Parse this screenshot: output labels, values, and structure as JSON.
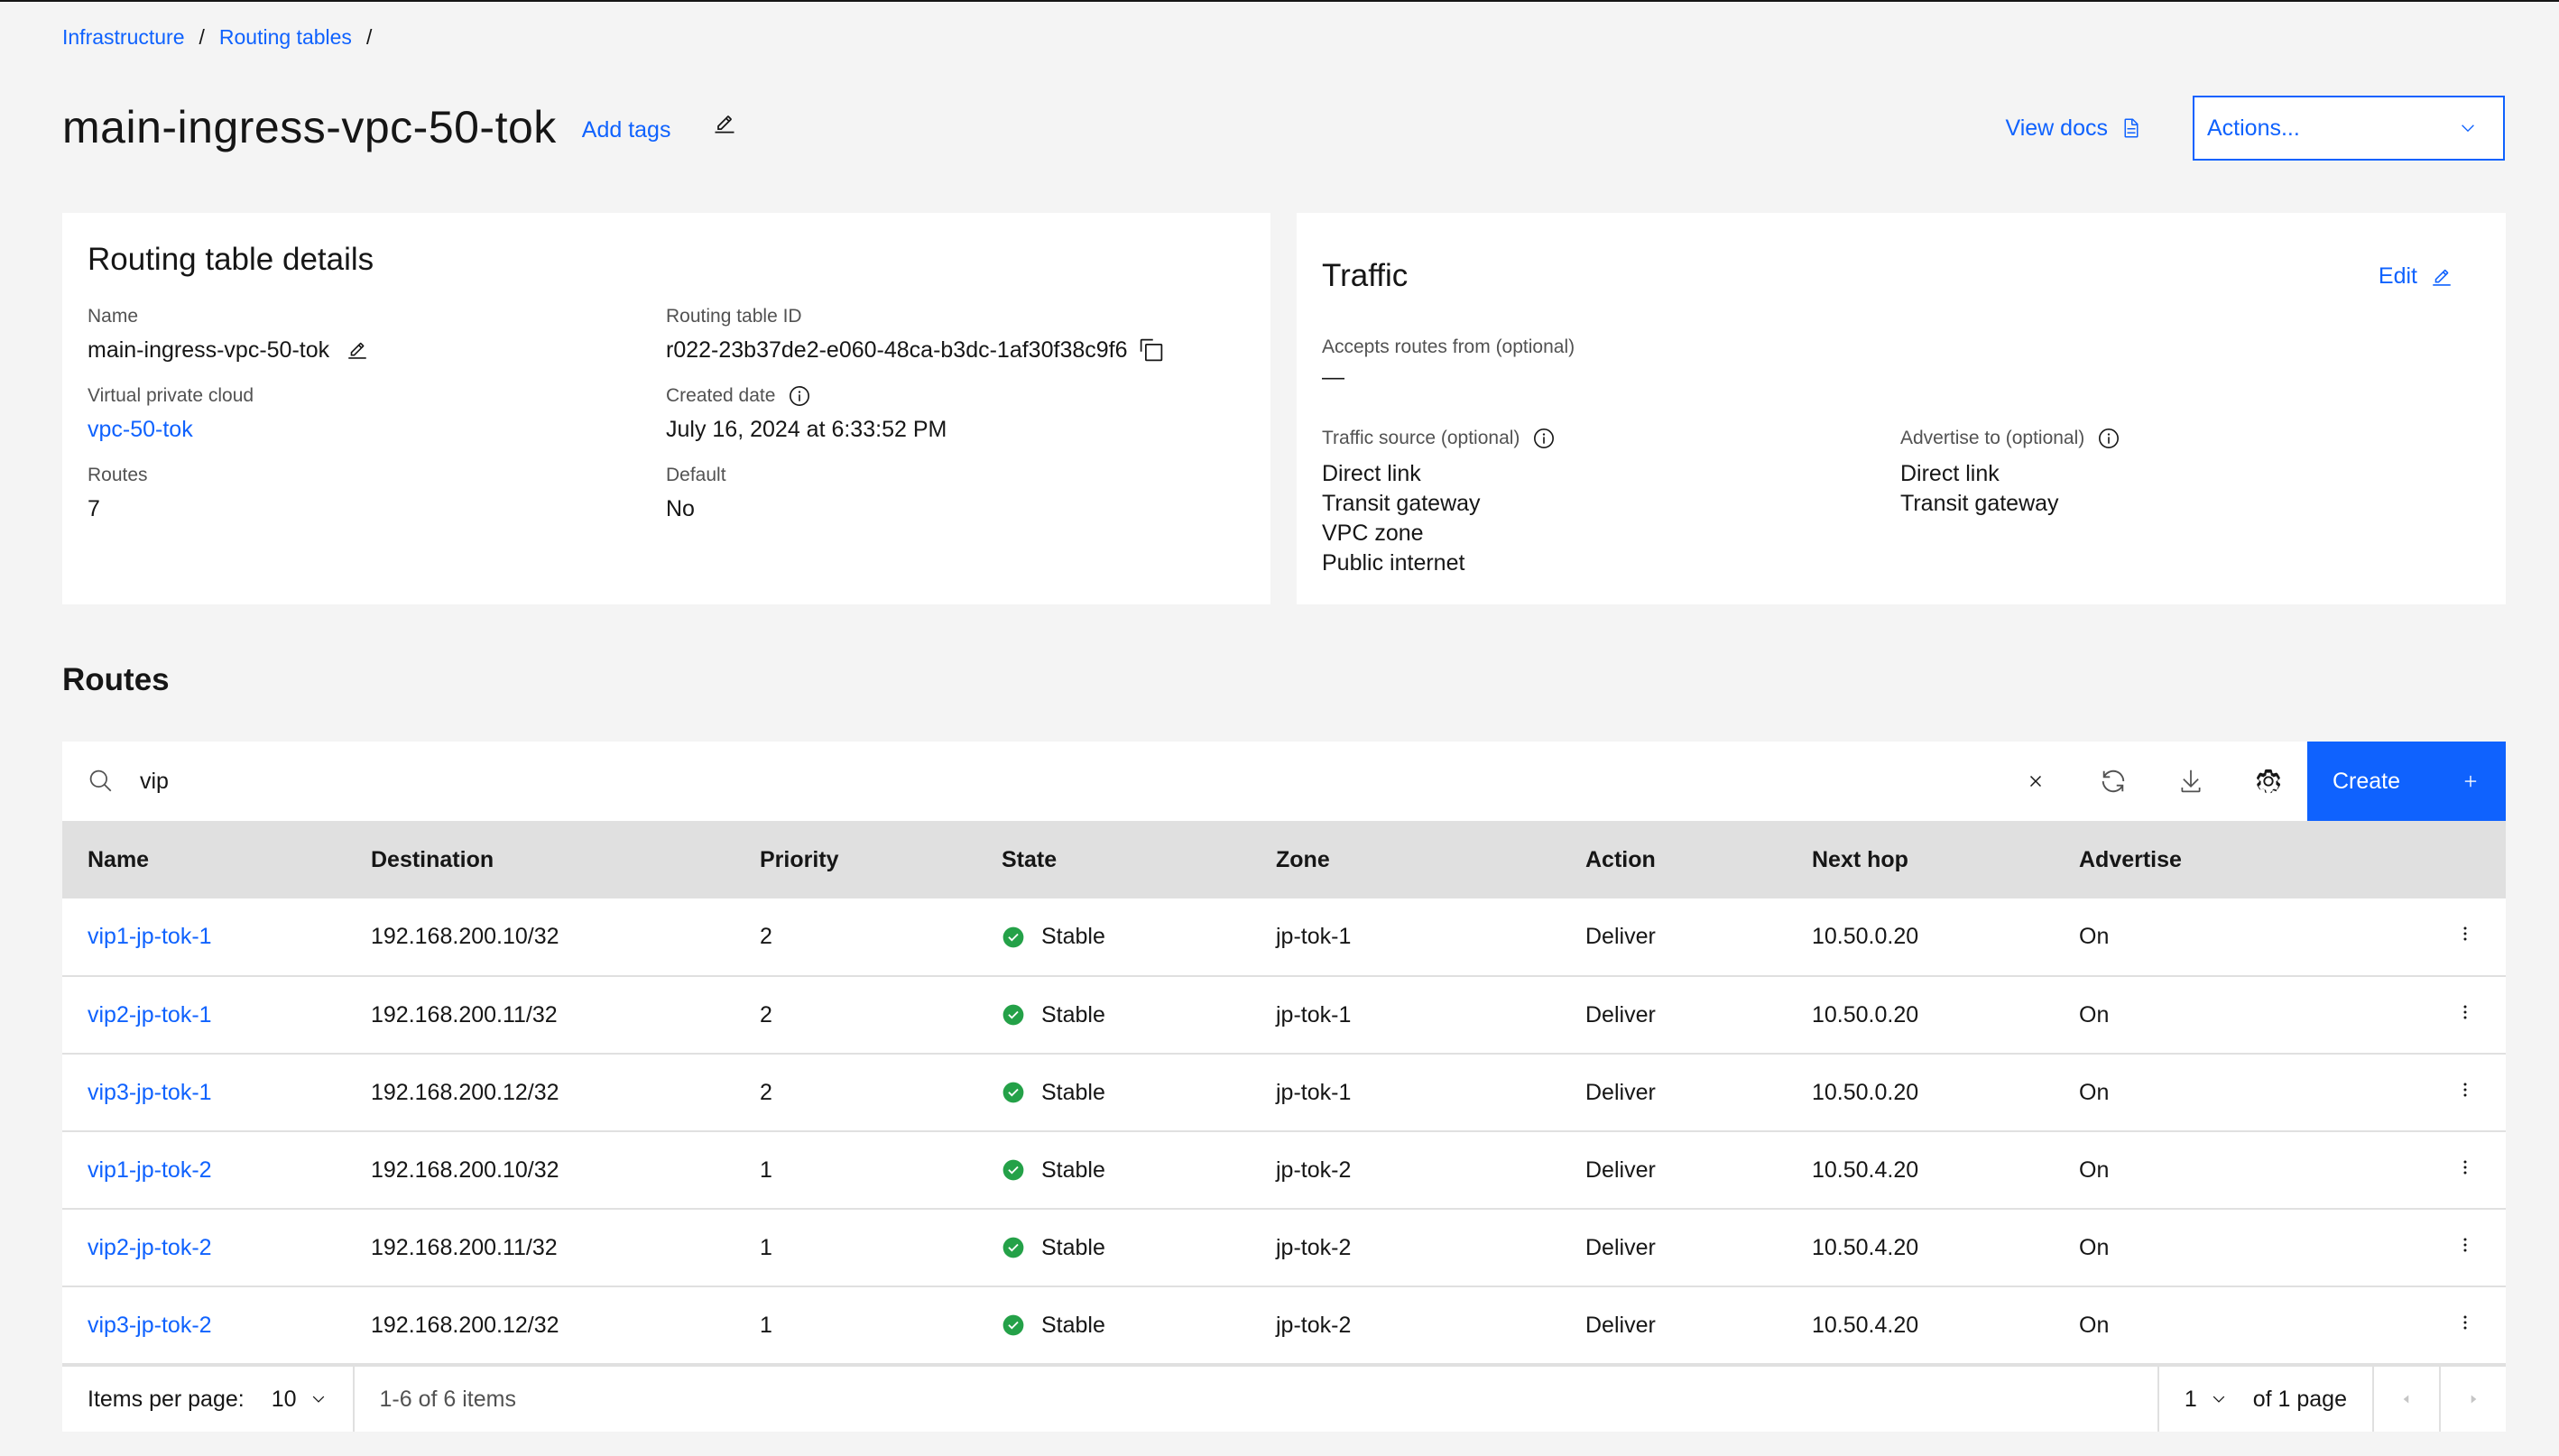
{
  "breadcrumb": {
    "items": [
      "Infrastructure",
      "Routing tables"
    ],
    "separator": "/"
  },
  "header": {
    "title": "main-ingress-vpc-50-tok",
    "add_tags": "Add tags",
    "view_docs": "View docs",
    "actions": "Actions..."
  },
  "details": {
    "title": "Routing table details",
    "name_label": "Name",
    "name_value": "main-ingress-vpc-50-tok",
    "id_label": "Routing table ID",
    "id_value": "r022-23b37de2-e060-48ca-b3dc-1af30f38c9f6",
    "vpc_label": "Virtual private cloud",
    "vpc_value": "vpc-50-tok",
    "created_label": "Created date",
    "created_value": "July 16, 2024 at 6:33:52 PM",
    "routes_label": "Routes",
    "routes_value": "7",
    "default_label": "Default",
    "default_value": "No"
  },
  "traffic": {
    "title": "Traffic",
    "edit": "Edit",
    "accepts_label": "Accepts routes from (optional)",
    "accepts_value": "—",
    "source_label": "Traffic source (optional)",
    "source_values": [
      "Direct link",
      "Transit gateway",
      "VPC zone",
      "Public internet"
    ],
    "advertise_label": "Advertise to (optional)",
    "advertise_values": [
      "Direct link",
      "Transit gateway"
    ]
  },
  "routes": {
    "title": "Routes",
    "search_value": "vip",
    "create": "Create",
    "columns": [
      "Name",
      "Destination",
      "Priority",
      "State",
      "Zone",
      "Action",
      "Next hop",
      "Advertise"
    ],
    "rows": [
      {
        "name": "vip1-jp-tok-1",
        "destination": "192.168.200.10/32",
        "priority": "2",
        "state": "Stable",
        "zone": "jp-tok-1",
        "action": "Deliver",
        "next_hop": "10.50.0.20",
        "advertise": "On"
      },
      {
        "name": "vip2-jp-tok-1",
        "destination": "192.168.200.11/32",
        "priority": "2",
        "state": "Stable",
        "zone": "jp-tok-1",
        "action": "Deliver",
        "next_hop": "10.50.0.20",
        "advertise": "On"
      },
      {
        "name": "vip3-jp-tok-1",
        "destination": "192.168.200.12/32",
        "priority": "2",
        "state": "Stable",
        "zone": "jp-tok-1",
        "action": "Deliver",
        "next_hop": "10.50.0.20",
        "advertise": "On"
      },
      {
        "name": "vip1-jp-tok-2",
        "destination": "192.168.200.10/32",
        "priority": "1",
        "state": "Stable",
        "zone": "jp-tok-2",
        "action": "Deliver",
        "next_hop": "10.50.4.20",
        "advertise": "On"
      },
      {
        "name": "vip2-jp-tok-2",
        "destination": "192.168.200.11/32",
        "priority": "1",
        "state": "Stable",
        "zone": "jp-tok-2",
        "action": "Deliver",
        "next_hop": "10.50.4.20",
        "advertise": "On"
      },
      {
        "name": "vip3-jp-tok-2",
        "destination": "192.168.200.12/32",
        "priority": "1",
        "state": "Stable",
        "zone": "jp-tok-2",
        "action": "Deliver",
        "next_hop": "10.50.4.20",
        "advertise": "On"
      }
    ]
  },
  "pagination": {
    "items_per_page_label": "Items per page:",
    "items_per_page_value": "10",
    "range": "1-6 of 6 items",
    "page": "1",
    "of_pages": "of 1 page"
  },
  "colors": {
    "link": "#0f62fe",
    "success": "#24a148",
    "header_bg": "#e0e0e0",
    "page_bg": "#f4f4f4"
  }
}
